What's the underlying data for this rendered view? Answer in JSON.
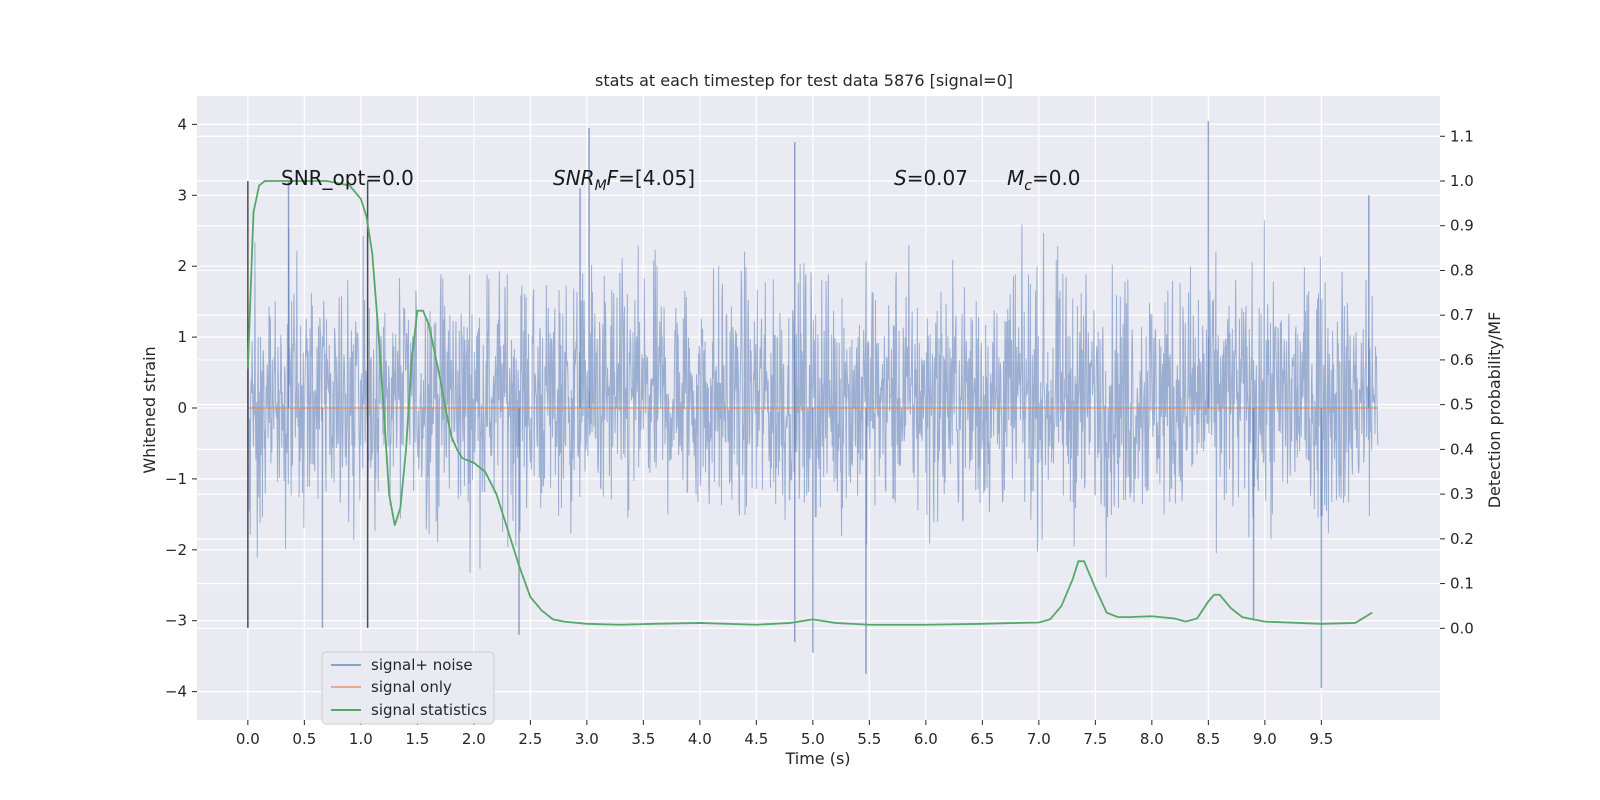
{
  "chart_data": {
    "type": "line",
    "title": "stats at each timestep for test data 5876 [signal=0]",
    "xlabel": "Time (s)",
    "ylabel": "Whitened strain",
    "y2label": "Detection probability/MF",
    "xlim": [
      -0.45,
      10.55
    ],
    "ylim": [
      -4.4,
      4.4
    ],
    "y2lim": [
      -0.205,
      1.19
    ],
    "xticks": [
      "0.0",
      "0.5",
      "1.0",
      "1.5",
      "2.0",
      "2.5",
      "3.0",
      "3.5",
      "4.0",
      "4.5",
      "5.0",
      "5.5",
      "6.0",
      "6.5",
      "7.0",
      "7.5",
      "8.0",
      "8.5",
      "9.0",
      "9.5"
    ],
    "yticks": [
      "4",
      "3",
      "2",
      "1",
      "0",
      "−1",
      "−2",
      "−3",
      "−4"
    ],
    "y2ticks": [
      "1.1",
      "1.0",
      "0.9",
      "0.8",
      "0.7",
      "0.6",
      "0.5",
      "0.4",
      "0.3",
      "0.2",
      "0.1",
      "0.0"
    ],
    "grid": true,
    "legend_position": "lower-left",
    "colors": {
      "axes_bg": "#eaeaf2",
      "grid": "#ffffff",
      "noise": "#4c72b0",
      "signal": "#dd8452",
      "stats": "#55a868",
      "vline": "#4d4d4d"
    },
    "series": [
      {
        "name": "signal+ noise",
        "axis": "left",
        "note_values": "dense whitened noise samples, approx band -2 to 2.5 with spikes",
        "spikes": [
          [
            3.02,
            3.95
          ],
          [
            4.84,
            3.75
          ],
          [
            8.5,
            4.05
          ],
          [
            2.94,
            3.1
          ],
          [
            0.36,
            3.2
          ],
          [
            9.92,
            3.0
          ],
          [
            5.47,
            -3.75
          ],
          [
            9.5,
            -3.95
          ],
          [
            0.66,
            -3.1
          ],
          [
            2.4,
            -3.2
          ],
          [
            5.0,
            -3.45
          ],
          [
            4.84,
            -3.3
          ],
          [
            8.9,
            -3.0
          ]
        ]
      },
      {
        "name": "signal only",
        "axis": "left",
        "x": [
          0.0,
          10.0
        ],
        "y": [
          0.0,
          0.0
        ]
      },
      {
        "name": "signal statistics",
        "axis": "right",
        "x": [
          0.0,
          0.05,
          0.1,
          0.15,
          0.2,
          0.3,
          0.5,
          0.7,
          0.9,
          1.0,
          1.05,
          1.1,
          1.15,
          1.2,
          1.25,
          1.3,
          1.35,
          1.4,
          1.45,
          1.5,
          1.55,
          1.6,
          1.65,
          1.7,
          1.75,
          1.8,
          1.85,
          1.9,
          1.95,
          2.0,
          2.1,
          2.2,
          2.3,
          2.4,
          2.5,
          2.6,
          2.7,
          2.8,
          3.0,
          3.3,
          3.6,
          4.0,
          4.5,
          4.8,
          5.0,
          5.2,
          5.5,
          6.0,
          6.5,
          6.8,
          7.0,
          7.1,
          7.2,
          7.3,
          7.35,
          7.4,
          7.5,
          7.6,
          7.7,
          7.8,
          8.0,
          8.2,
          8.3,
          8.4,
          8.5,
          8.55,
          8.6,
          8.7,
          8.8,
          9.0,
          9.5,
          9.8,
          9.95
        ],
        "y": [
          0.58,
          0.93,
          0.99,
          1.0,
          1.0,
          1.0,
          1.0,
          1.0,
          0.99,
          0.96,
          0.92,
          0.84,
          0.68,
          0.5,
          0.3,
          0.23,
          0.27,
          0.4,
          0.6,
          0.71,
          0.71,
          0.68,
          0.62,
          0.56,
          0.49,
          0.43,
          0.4,
          0.38,
          0.375,
          0.37,
          0.35,
          0.3,
          0.22,
          0.14,
          0.07,
          0.04,
          0.02,
          0.015,
          0.01,
          0.008,
          0.01,
          0.012,
          0.008,
          0.012,
          0.02,
          0.012,
          0.008,
          0.008,
          0.01,
          0.012,
          0.013,
          0.02,
          0.05,
          0.11,
          0.15,
          0.15,
          0.09,
          0.035,
          0.025,
          0.025,
          0.027,
          0.022,
          0.015,
          0.022,
          0.06,
          0.075,
          0.075,
          0.045,
          0.025,
          0.015,
          0.01,
          0.012,
          0.035
        ]
      }
    ],
    "vertical_lines": [
      0.0,
      1.06
    ],
    "annotations": {
      "snr_opt": "SNR_opt=0.0",
      "snr_mf_sym": "SNR",
      "snr_mf_sub": "M",
      "snr_mf_var": "F",
      "snr_mf_val": "=[4.05]",
      "s_sym": "S",
      "s_val": "=0.07",
      "mc_sym": "M",
      "mc_sub": "c",
      "mc_val": "=0.0"
    }
  }
}
